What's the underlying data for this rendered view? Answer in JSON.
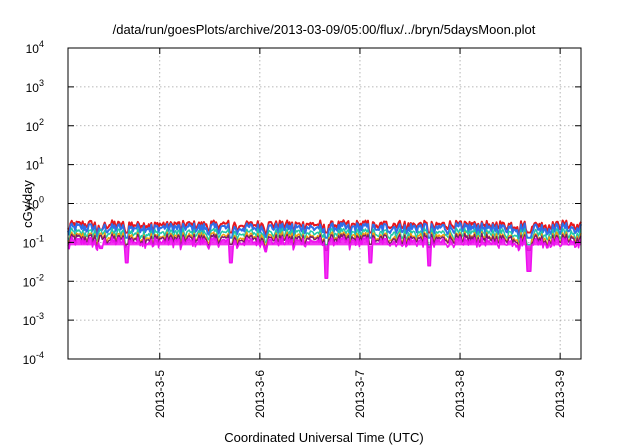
{
  "chart_data": {
    "type": "line",
    "title": "/data/run/goesPlots/archive/2013-03-09/05:00/flux/../bryn/5daysMoon.plot",
    "xlabel": "Coordinated Universal Time (UTC)",
    "ylabel": "cGy/day",
    "yscale": "log",
    "ylim": [
      0.0001,
      10000
    ],
    "xlim": [
      "2013-03-04 02:00",
      "2013-03-09 05:00"
    ],
    "grid": true,
    "legend": "none",
    "y_ticks": [
      {
        "value": 0.0001,
        "base": "10",
        "exp": "-4"
      },
      {
        "value": 0.001,
        "base": "10",
        "exp": "-3"
      },
      {
        "value": 0.01,
        "base": "10",
        "exp": "-2"
      },
      {
        "value": 0.1,
        "base": "10",
        "exp": "-1"
      },
      {
        "value": 1,
        "base": "10",
        "exp": "0"
      },
      {
        "value": 10,
        "base": "10",
        "exp": "1"
      },
      {
        "value": 100,
        "base": "10",
        "exp": "2"
      },
      {
        "value": 1000,
        "base": "10",
        "exp": "3"
      },
      {
        "value": 10000,
        "base": "10",
        "exp": "4"
      }
    ],
    "x_ticks": [
      {
        "value": "2013-03-05 00:00",
        "label": "2013-3-5"
      },
      {
        "value": "2013-03-06 00:00",
        "label": "2013-3-6"
      },
      {
        "value": "2013-03-07 00:00",
        "label": "2013-3-7"
      },
      {
        "value": "2013-03-08 00:00",
        "label": "2013-3-8"
      },
      {
        "value": "2013-03-09 00:00",
        "label": "2013-3-9"
      }
    ],
    "series": [
      {
        "color": "#e8161c",
        "base": 0.29,
        "spread": 0.07,
        "dip_depth": 0.62,
        "fill": false
      },
      {
        "color": "#2f6fe8",
        "base": 0.24,
        "spread": 0.07,
        "dip_depth": 0.55,
        "fill": false
      },
      {
        "color": "#1ec8a8",
        "base": 0.175,
        "spread": 0.05,
        "dip_depth": 0.5,
        "fill": false
      },
      {
        "color": "#f0a010",
        "base": 0.14,
        "spread": 0.04,
        "dip_depth": 0.5,
        "fill": false
      },
      {
        "color": "#7a1a6a",
        "base": 0.125,
        "spread": 0.035,
        "dip_depth": 0.5,
        "fill": false
      },
      {
        "color": "#ee10ee",
        "base": 0.105,
        "spread": 0.03,
        "dip_depth": 0.55,
        "fill": true
      }
    ],
    "dips": [
      {
        "x": "2013-03-04 10:00",
        "value": 0.07
      },
      {
        "x": "2013-03-04 16:00",
        "value": 0.03
      },
      {
        "x": "2013-03-05 17:00",
        "value": 0.03
      },
      {
        "x": "2013-03-06 16:00",
        "value": 0.012
      },
      {
        "x": "2013-03-07 02:30",
        "value": 0.03
      },
      {
        "x": "2013-03-07 16:30",
        "value": 0.025
      },
      {
        "x": "2013-03-08 16:30",
        "value": 0.018
      }
    ]
  }
}
